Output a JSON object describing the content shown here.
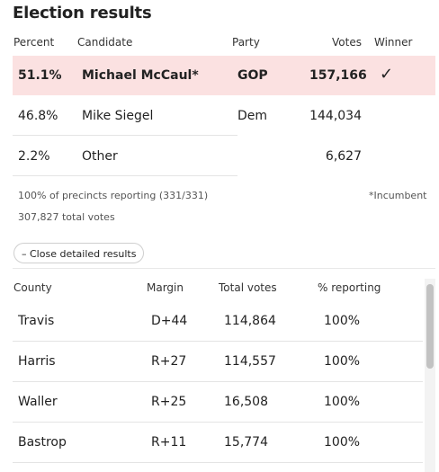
{
  "title": "Election results",
  "results_header": {
    "percent": "Percent",
    "candidate": "Candidate",
    "party": "Party",
    "votes": "Votes",
    "winner": "Winner"
  },
  "candidates": [
    {
      "percent": "51.1%",
      "name": "Michael McCaul*",
      "party": "GOP",
      "votes": "157,166",
      "winner": "✓"
    },
    {
      "percent": "46.8%",
      "name": "Mike Siegel",
      "party": "Dem",
      "votes": "144,034",
      "winner": ""
    },
    {
      "percent": "2.2%",
      "name": "Other",
      "party": "",
      "votes": "6,627",
      "winner": ""
    }
  ],
  "notes": {
    "precincts": "100% of precincts reporting (331/331)",
    "total_votes": "307,827 total votes",
    "incumbent": "*Incumbent"
  },
  "toggle_button": "– Close detailed results",
  "county_header": {
    "county": "County",
    "margin": "Margin",
    "total_votes": "Total votes",
    "reporting": "% reporting"
  },
  "counties": [
    {
      "county": "Travis",
      "margin": "D+44",
      "total_votes": "114,864",
      "reporting": "100%"
    },
    {
      "county": "Harris",
      "margin": "R+27",
      "total_votes": "114,557",
      "reporting": "100%"
    },
    {
      "county": "Waller",
      "margin": "R+25",
      "total_votes": "16,508",
      "reporting": "100%"
    },
    {
      "county": "Bastrop",
      "margin": "R+11",
      "total_votes": "15,774",
      "reporting": "100%"
    }
  ],
  "colors": {
    "winner_highlight": "#fbe1e1",
    "dem": "#2f74c0",
    "gop": "#e05a4a"
  }
}
